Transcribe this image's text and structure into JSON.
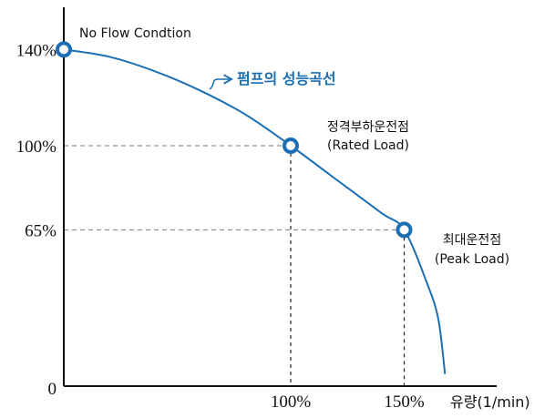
{
  "chart_data": {
    "type": "line",
    "xlabel": "유량(1/min)",
    "ylabel": "",
    "origin_label": "0",
    "x_ticks": [
      {
        "value": 100,
        "label": "100%"
      },
      {
        "value": 150,
        "label": "150%"
      }
    ],
    "y_ticks": [
      {
        "value": 65,
        "label": "65%"
      },
      {
        "value": 100,
        "label": "100%"
      },
      {
        "value": 140,
        "label": "140%"
      }
    ],
    "xlim": [
      0,
      173
    ],
    "ylim": [
      0,
      165
    ],
    "grid": false,
    "series": [
      {
        "name": "펌프의 성능곡선",
        "x": [
          0,
          20,
          40,
          60,
          80,
          100,
          120,
          140,
          150,
          160,
          165,
          168
        ],
        "y": [
          140,
          137,
          131,
          123,
          113,
          100,
          86,
          72,
          65,
          43,
          28,
          5
        ]
      }
    ],
    "key_points": [
      {
        "x": 0,
        "y": 140,
        "label_lines": [
          "No Flow Condtion"
        ]
      },
      {
        "x": 100,
        "y": 100,
        "label_lines": [
          "정격부하운전점",
          "(Rated Load)"
        ]
      },
      {
        "x": 150,
        "y": 65,
        "label_lines": [
          "최대운전점",
          "(Peak Load)"
        ]
      }
    ],
    "colors": {
      "curve": "#1c6fb3",
      "marker": "#1c6fb3",
      "axis": "#111111",
      "guide": "#777777"
    }
  }
}
